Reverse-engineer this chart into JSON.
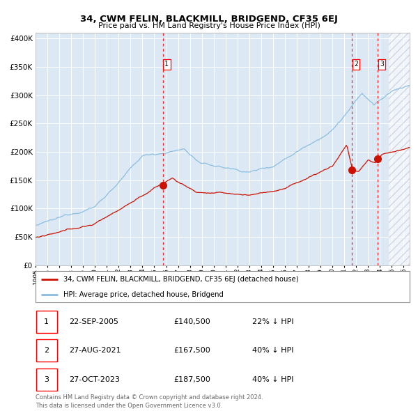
{
  "title": "34, CWM FELIN, BLACKMILL, BRIDGEND, CF35 6EJ",
  "subtitle": "Price paid vs. HM Land Registry's House Price Index (HPI)",
  "bg_color": "#dce9f5",
  "hpi_color": "#88bbdd",
  "price_color": "#cc1100",
  "ylim": [
    0,
    410000
  ],
  "yticks": [
    0,
    50000,
    100000,
    150000,
    200000,
    250000,
    300000,
    350000,
    400000
  ],
  "xlim_start": 1995.0,
  "xlim_end": 2026.5,
  "hatch_start": 2024.75,
  "sale_dates": [
    2005.72,
    2021.66,
    2023.83
  ],
  "sale_prices": [
    140500,
    167500,
    187500
  ],
  "sale_labels": [
    "1",
    "2",
    "3"
  ],
  "footnote": "Contains HM Land Registry data © Crown copyright and database right 2024.\nThis data is licensed under the Open Government Licence v3.0.",
  "legend_house": "34, CWM FELIN, BLACKMILL, BRIDGEND, CF35 6EJ (detached house)",
  "legend_hpi": "HPI: Average price, detached house, Bridgend",
  "table_rows": [
    [
      "1",
      "22-SEP-2005",
      "£140,500",
      "22% ↓ HPI"
    ],
    [
      "2",
      "27-AUG-2021",
      "£167,500",
      "40% ↓ HPI"
    ],
    [
      "3",
      "27-OCT-2023",
      "£187,500",
      "40% ↓ HPI"
    ]
  ]
}
